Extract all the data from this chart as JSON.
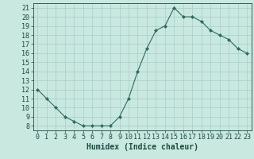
{
  "x": [
    0,
    1,
    2,
    3,
    4,
    5,
    6,
    7,
    8,
    9,
    10,
    11,
    12,
    13,
    14,
    15,
    16,
    17,
    18,
    19,
    20,
    21,
    22,
    23
  ],
  "y": [
    12,
    11,
    10,
    9,
    8.5,
    8,
    8,
    8,
    8,
    9,
    11,
    14,
    16.5,
    18.5,
    19,
    21,
    20,
    20,
    19.5,
    18.5,
    18,
    17.5,
    16.5,
    16
  ],
  "line_color": "#2e6b5e",
  "marker_color": "#2e6b5e",
  "bg_color": "#c8e8e0",
  "grid_color": "#a8cec8",
  "xlabel": "Humidex (Indice chaleur)",
  "ylim": [
    7.5,
    21.5
  ],
  "xlim": [
    -0.5,
    23.5
  ],
  "yticks": [
    8,
    9,
    10,
    11,
    12,
    13,
    14,
    15,
    16,
    17,
    18,
    19,
    20,
    21
  ],
  "xticks": [
    0,
    1,
    2,
    3,
    4,
    5,
    6,
    7,
    8,
    9,
    10,
    11,
    12,
    13,
    14,
    15,
    16,
    17,
    18,
    19,
    20,
    21,
    22,
    23
  ],
  "xlabel_fontsize": 7,
  "tick_fontsize": 6,
  "font_color": "#1a4a40"
}
